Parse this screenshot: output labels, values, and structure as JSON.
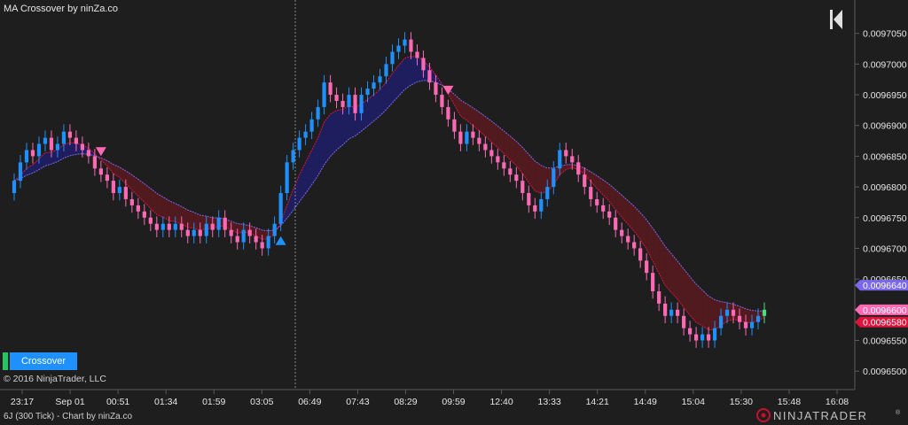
{
  "title": "MA Crossover by ninZa.co",
  "copyright": "© 2016 NinjaTrader, LLC",
  "footer": "6J (300 Tick) - Chart by ninZa.co",
  "crossover_button": "Crossover",
  "brand": {
    "logo_text": "NINJATRADER",
    "registered": "®"
  },
  "colors": {
    "background": "#1e1e1e",
    "up_candle": "#1e90ff",
    "down_candle": "#ff69b4",
    "fast_ma": "#dc143c",
    "slow_ma": "#7b68ee",
    "bull_fill": "#1f1f6b",
    "bear_fill": "#5a1a1e",
    "buy_arrow": "#1e90ff",
    "sell_arrow": "#ff69b4"
  },
  "chart_data": {
    "type": "candlestick",
    "title": "MA Crossover by ninZa.co",
    "y_ticks": [
      "0.0097050",
      "0.0097000",
      "0.0096950",
      "0.0096900",
      "0.0096850",
      "0.0096800",
      "0.0096750",
      "0.0096700",
      "0.0096650",
      "0.0096600",
      "0.0096550",
      "0.0096500"
    ],
    "ylim": [
      0.009647,
      0.00971
    ],
    "x_ticks": [
      "23:17",
      "Sep 01",
      "00:51",
      "01:34",
      "01:59",
      "03:05",
      "06:49",
      "07:43",
      "08:29",
      "09:59",
      "12:40",
      "13:33",
      "14:21",
      "14:49",
      "15:04",
      "15:30",
      "15:48",
      "16:08"
    ],
    "price_markers": [
      {
        "label": "0.0096640",
        "value": 0.009664,
        "color": "#7b68ee"
      },
      {
        "label": "0.0096600",
        "value": 0.00966,
        "color": "#ff69b4"
      },
      {
        "label": "0.0096580",
        "value": 0.009658,
        "color": "#dc143c"
      }
    ],
    "close": [
      0.009681,
      0.009684,
      0.009686,
      0.009685,
      0.009687,
      0.009688,
      0.009686,
      0.009687,
      0.009689,
      0.009688,
      0.009687,
      0.009686,
      0.009685,
      0.009683,
      0.009682,
      0.009681,
      0.009679,
      0.00968,
      0.009678,
      0.009677,
      0.009676,
      0.009675,
      0.009674,
      0.009673,
      0.009674,
      0.009673,
      0.009674,
      0.009673,
      0.009672,
      0.009673,
      0.009672,
      0.009674,
      0.009673,
      0.009675,
      0.009673,
      0.009672,
      0.009671,
      0.009673,
      0.009672,
      0.009671,
      0.00967,
      0.009672,
      0.009674,
      0.009679,
      0.009684,
      0.009686,
      0.009688,
      0.009689,
      0.009691,
      0.009693,
      0.009697,
      0.009695,
      0.009694,
      0.009693,
      0.009695,
      0.009692,
      0.009695,
      0.009696,
      0.009697,
      0.009698,
      0.0097,
      0.009702,
      0.009703,
      0.009704,
      0.009702,
      0.009701,
      0.009699,
      0.009697,
      0.009695,
      0.009693,
      0.009691,
      0.009689,
      0.009687,
      0.009689,
      0.009688,
      0.009687,
      0.009686,
      0.009685,
      0.009684,
      0.009683,
      0.009682,
      0.009681,
      0.009679,
      0.009677,
      0.009676,
      0.009678,
      0.00968,
      0.009683,
      0.009686,
      0.009685,
      0.009684,
      0.009682,
      0.00968,
      0.009678,
      0.009677,
      0.009676,
      0.009675,
      0.009673,
      0.009672,
      0.009671,
      0.00967,
      0.009668,
      0.009666,
      0.009663,
      0.009661,
      0.009659,
      0.00966,
      0.009659,
      0.009657,
      0.009656,
      0.009655,
      0.009656,
      0.009655,
      0.009657,
      0.009659,
      0.00966,
      0.009659,
      0.009658,
      0.009657,
      0.009658,
      0.009659,
      0.00966
    ]
  }
}
